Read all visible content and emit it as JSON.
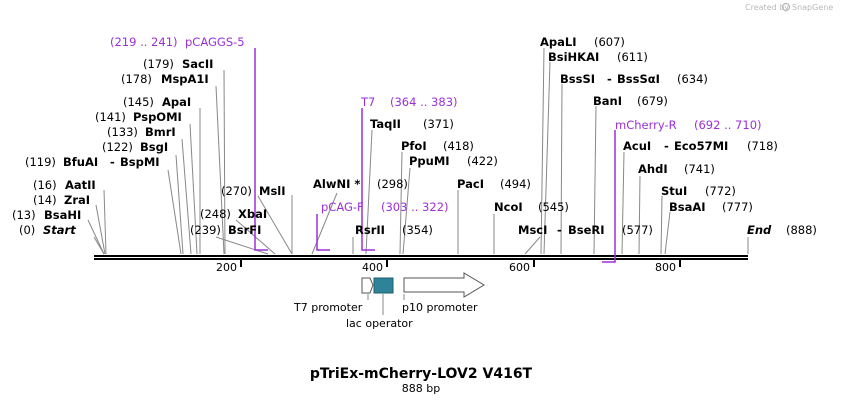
{
  "credit": {
    "text": "Created by",
    "brand": "SnapGene"
  },
  "title": "pTriEx-mCherry-LOV2 V416T",
  "subtitle": "888 bp",
  "start_label": "Start",
  "start_pos": "(0)",
  "end_label": "End",
  "end_pos": "(888)",
  "ticks": [
    "200",
    "400",
    "600",
    "800"
  ],
  "enzymes": [
    {
      "name": "BsaHI",
      "pos": "(13)"
    },
    {
      "name": "ZraI",
      "pos": "(14)"
    },
    {
      "name": "AatII",
      "pos": "(16)"
    },
    {
      "name": "BfuAI",
      "name2": "BspMI",
      "pos": "(119)"
    },
    {
      "name": "BsgI",
      "pos": "(122)"
    },
    {
      "name": "BmrI",
      "pos": "(133)"
    },
    {
      "name": "PspOMI",
      "pos": "(141)"
    },
    {
      "name": "ApaI",
      "pos": "(145)"
    },
    {
      "name": "MspA1I",
      "pos": "(178)"
    },
    {
      "name": "SacII",
      "pos": "(179)"
    },
    {
      "name": "BsrFI",
      "pos": "(239)"
    },
    {
      "name": "XbaI",
      "pos": "(248)"
    },
    {
      "name": "MslI",
      "pos": "(270)"
    },
    {
      "name": "AlwNI *",
      "pos": "(298)"
    },
    {
      "name": "RsrII",
      "pos": "(354)"
    },
    {
      "name": "TaqII",
      "pos": "(371)"
    },
    {
      "name": "PfoI",
      "pos": "(418)"
    },
    {
      "name": "PpuMI",
      "pos": "(422)"
    },
    {
      "name": "PacI",
      "pos": "(494)"
    },
    {
      "name": "NcoI",
      "pos": "(545)"
    },
    {
      "name": "MscI",
      "name2": "BseRI",
      "pos": "(577)"
    },
    {
      "name": "ApaLI",
      "pos": "(607)"
    },
    {
      "name": "BsiHKAI",
      "pos": "(611)"
    },
    {
      "name": "BssSI",
      "name2": "BssSαI",
      "pos": "(634)"
    },
    {
      "name": "BanI",
      "pos": "(679)"
    },
    {
      "name": "AcuI",
      "name2": "Eco57MI",
      "pos": "(718)"
    },
    {
      "name": "AhdI",
      "pos": "(741)"
    },
    {
      "name": "StuI",
      "pos": "(772)"
    },
    {
      "name": "BsaAI",
      "pos": "(777)"
    }
  ],
  "features": [
    {
      "name": "pCAGGS-5",
      "range": "(219 .. 241)"
    },
    {
      "name": "T7",
      "range": "(364 .. 383)"
    },
    {
      "name": "pCAG-F",
      "range": "(303 .. 322)"
    },
    {
      "name": "mCherry-R",
      "range": "(692 .. 710)"
    }
  ],
  "promoters": [
    {
      "name": "T7 promoter"
    },
    {
      "name": "lac operator"
    },
    {
      "name": "p10 promoter"
    }
  ],
  "colors": {
    "primer": "#9b30d9",
    "lac_operator": "#2f8398",
    "backbone": "#000000"
  }
}
